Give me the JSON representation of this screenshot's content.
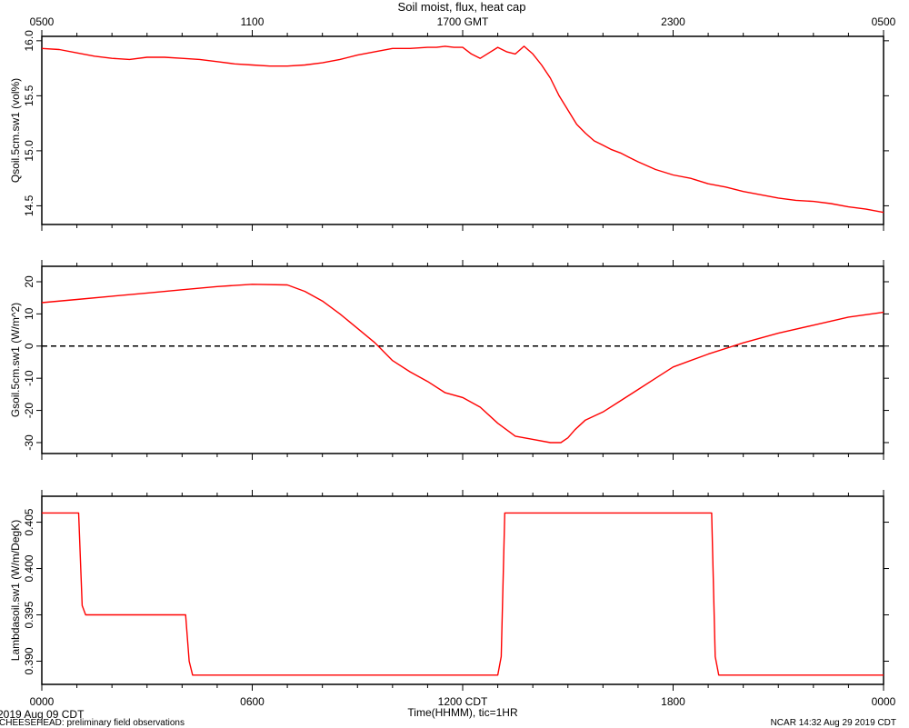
{
  "title": "Soil moist, flux, heat cap",
  "top_axis": {
    "title": "",
    "ticks": [
      "0500",
      "1100",
      "1700 GMT",
      "2300",
      "0500"
    ]
  },
  "bottom_axis": {
    "title": "Time(HHMM), tic=1HR",
    "ticks": [
      "0000",
      "0600",
      "1200 CDT",
      "1800",
      "0000"
    ]
  },
  "footer": {
    "date": "2019 Aug 09 CDT",
    "project": "CHEESEHEAD: preliminary field observations",
    "credit": "NCAR 14:32 Aug 29 2019 CDT"
  },
  "colors": {
    "series": "#ff0000",
    "axis": "#000000",
    "zero_line": "#000000"
  },
  "chart_data": [
    {
      "type": "line",
      "ylabel": "Qsoil.5cm.sw1 (vol%)",
      "xlim": [
        0,
        24
      ],
      "ylim": [
        14.33,
        16.04
      ],
      "yticks": [
        14.5,
        15.0,
        15.5,
        16.0
      ],
      "ytick_labels": [
        "14.5",
        "15.0",
        "15.5",
        "16.0"
      ],
      "series": [
        {
          "x": [
            0,
            0.5,
            1,
            1.5,
            2,
            2.5,
            3,
            3.5,
            4,
            4.5,
            5,
            5.5,
            6,
            6.5,
            7,
            7.5,
            8,
            8.5,
            9,
            9.5,
            10,
            10.5,
            11,
            11.25,
            11.5,
            11.75,
            12,
            12.25,
            12.5,
            12.75,
            13,
            13.25,
            13.5,
            13.75,
            14,
            14.25,
            14.5,
            14.75,
            15,
            15.25,
            15.5,
            15.75,
            16,
            16.25,
            16.5,
            16.75,
            17,
            17.5,
            18,
            18.5,
            19,
            19.5,
            20,
            20.5,
            21,
            21.5,
            22,
            22.5,
            23,
            23.5,
            24
          ],
          "y": [
            15.93,
            15.92,
            15.89,
            15.86,
            15.84,
            15.83,
            15.85,
            15.85,
            15.84,
            15.83,
            15.81,
            15.79,
            15.78,
            15.77,
            15.77,
            15.78,
            15.8,
            15.83,
            15.87,
            15.9,
            15.93,
            15.93,
            15.94,
            15.94,
            15.95,
            15.94,
            15.94,
            15.88,
            15.84,
            15.89,
            15.94,
            15.9,
            15.88,
            15.95,
            15.88,
            15.78,
            15.66,
            15.5,
            15.37,
            15.24,
            15.16,
            15.09,
            15.05,
            15.01,
            14.98,
            14.94,
            14.9,
            14.83,
            14.78,
            14.75,
            14.7,
            14.67,
            14.63,
            14.6,
            14.57,
            14.55,
            14.54,
            14.52,
            14.49,
            14.47,
            14.44
          ],
          "color": "#ff0000"
        }
      ]
    },
    {
      "type": "line",
      "ylabel": "Gsoil.5cm.sw1 (W/m^2)",
      "xlim": [
        0,
        24
      ],
      "ylim": [
        -33.4,
        24.8
      ],
      "yticks": [
        -30,
        -20,
        -10,
        0,
        10,
        20
      ],
      "ytick_labels": [
        "-30",
        "-20",
        "-10",
        "0",
        "10",
        "20"
      ],
      "zero_line": 0,
      "series": [
        {
          "x": [
            0,
            1,
            2,
            3,
            4,
            5,
            6,
            7,
            7.5,
            8,
            8.5,
            9,
            9.5,
            10,
            10.5,
            11,
            11.5,
            12,
            12.5,
            13,
            13.5,
            14,
            14.5,
            14.8,
            15,
            15.2,
            15.5,
            16,
            16.5,
            17,
            17.5,
            18,
            19,
            20,
            21,
            22,
            23,
            24
          ],
          "y": [
            13.5,
            14.5,
            15.5,
            16.5,
            17.5,
            18.5,
            19.2,
            19.0,
            17.0,
            14.0,
            10.0,
            5.5,
            1.0,
            -4.5,
            -8.0,
            -11.0,
            -14.5,
            -16.0,
            -19.0,
            -24.0,
            -28.0,
            -29.0,
            -30.0,
            -30.0,
            -28.5,
            -26.0,
            -23.0,
            -20.5,
            -17.0,
            -13.5,
            -10.0,
            -6.5,
            -2.5,
            1.0,
            4.0,
            6.5,
            9.0,
            10.5
          ],
          "color": "#ff0000"
        }
      ]
    },
    {
      "type": "line",
      "ylabel": "Lambdasoil.sw1 (W/m/DegK)",
      "xlim": [
        0,
        24
      ],
      "ylim": [
        0.3875,
        0.4078
      ],
      "yticks": [
        0.39,
        0.395,
        0.4,
        0.405
      ],
      "ytick_labels": [
        "0.390",
        "0.395",
        "0.400",
        "0.405"
      ],
      "series": [
        {
          "x": [
            0,
            1.05,
            1.15,
            1.25,
            4.1,
            4.2,
            4.3,
            13.0,
            13.1,
            13.2,
            19.1,
            19.2,
            19.3,
            24
          ],
          "y": [
            0.406,
            0.406,
            0.396,
            0.395,
            0.395,
            0.39,
            0.3885,
            0.3885,
            0.3905,
            0.406,
            0.406,
            0.3905,
            0.3885,
            0.3885
          ],
          "color": "#ff0000"
        }
      ]
    }
  ]
}
